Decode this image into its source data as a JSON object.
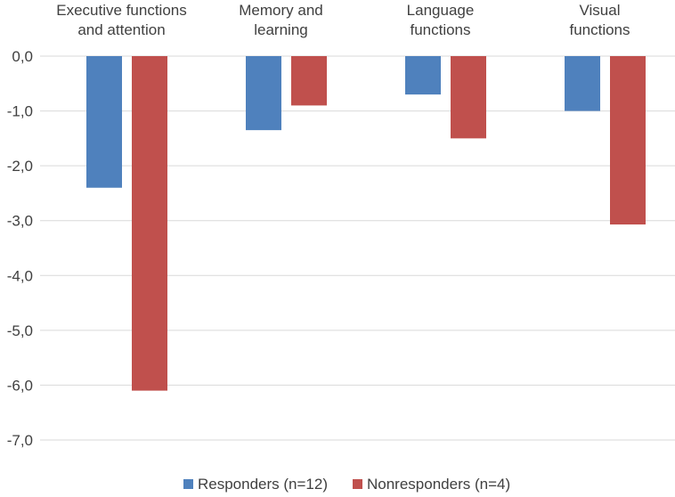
{
  "chart_data": {
    "type": "bar",
    "categories": [
      [
        "Executive  functions",
        "and attention"
      ],
      [
        "Memory and",
        "learning"
      ],
      [
        "Language",
        "functions"
      ],
      [
        "Visual",
        "functions"
      ]
    ],
    "series": [
      {
        "name": "Responders (n=12)",
        "color": "#4f81bd",
        "values": [
          -2.4,
          -1.35,
          -0.7,
          -1.0
        ]
      },
      {
        "name": "Nonresponders (n=4)",
        "color": "#c0504d",
        "values": [
          -6.1,
          -0.9,
          -1.5,
          -3.07
        ]
      }
    ],
    "yticks": [
      "0,0",
      "-1,0",
      "-2,0",
      "-3,0",
      "-4,0",
      "-5,0",
      "-6,0",
      "-7,0"
    ],
    "ytick_values": [
      0,
      -1,
      -2,
      -3,
      -4,
      -5,
      -6,
      -7
    ],
    "ylim": [
      -7,
      0
    ],
    "xaxis_position": "top",
    "grid": true,
    "legend_position": "bottom",
    "title": "",
    "xlabel": "",
    "ylabel": ""
  }
}
